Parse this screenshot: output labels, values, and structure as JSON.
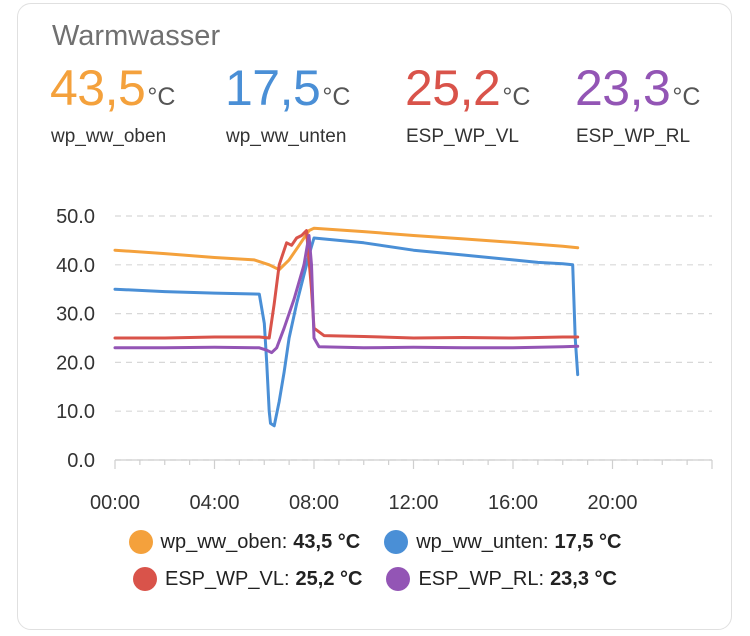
{
  "card": {
    "title": "Warmwasser"
  },
  "stats": [
    {
      "value": "43,5",
      "unit": "°C",
      "label": "wp_ww_oben",
      "color": "#f4a13c"
    },
    {
      "value": "17,5",
      "unit": "°C",
      "label": "wp_ww_unten",
      "color": "#4a8fd6"
    },
    {
      "value": "25,2",
      "unit": "°C",
      "label": "ESP_WP_VL",
      "color": "#d9534a"
    },
    {
      "value": "23,3",
      "unit": "°C",
      "label": "ESP_WP_RL",
      "color": "#9355b5"
    }
  ],
  "legend": [
    {
      "name": "wp_ww_oben:",
      "value": "43,5 °C",
      "color": "#f4a13c"
    },
    {
      "name": "wp_ww_unten:",
      "value": "17,5 °C",
      "color": "#4a8fd6"
    },
    {
      "name": "ESP_WP_VL:",
      "value": "25,2 °C",
      "color": "#d9534a"
    },
    {
      "name": "ESP_WP_RL:",
      "value": "23,3 °C",
      "color": "#9355b5"
    }
  ],
  "chart_data": {
    "type": "line",
    "ylim": [
      0,
      50
    ],
    "xlim": [
      0,
      24
    ],
    "y_ticks": [
      "0.0",
      "10.0",
      "20.0",
      "30.0",
      "40.0",
      "50.0"
    ],
    "x_ticks": [
      "00:00",
      "04:00",
      "08:00",
      "12:00",
      "16:00",
      "20:00"
    ],
    "grid": "horizontal-dashed",
    "series": [
      {
        "name": "wp_ww_oben",
        "color": "#f4a13c",
        "x": [
          0,
          2,
          4,
          5.6,
          6.2,
          6.6,
          7.0,
          7.4,
          7.8,
          8.0,
          10,
          12,
          14,
          16,
          18,
          18.6
        ],
        "y": [
          43.0,
          42.3,
          41.5,
          41.0,
          40.0,
          39.0,
          41.0,
          44.0,
          47.0,
          47.5,
          46.8,
          46.0,
          45.3,
          44.6,
          43.8,
          43.5
        ]
      },
      {
        "name": "wp_ww_unten",
        "color": "#4a8fd6",
        "x": [
          0,
          2,
          4,
          5.8,
          6.0,
          6.1,
          6.2,
          6.25,
          6.4,
          6.6,
          6.8,
          7.0,
          7.3,
          7.6,
          7.8,
          8.0,
          10,
          12,
          14,
          16,
          17,
          18,
          18.4,
          18.5,
          18.6
        ],
        "y": [
          35.0,
          34.5,
          34.2,
          34.0,
          28.0,
          20.0,
          10.0,
          7.5,
          7.0,
          12.0,
          18.0,
          25.0,
          32.0,
          38.0,
          42.0,
          45.5,
          44.5,
          43.0,
          42.0,
          41.0,
          40.5,
          40.2,
          40.0,
          25.0,
          17.5
        ]
      },
      {
        "name": "ESP_WP_VL",
        "color": "#d9534a",
        "x": [
          0,
          2,
          4,
          5.8,
          6.2,
          6.4,
          6.6,
          6.9,
          7.1,
          7.3,
          7.5,
          7.7,
          7.9,
          8.0,
          8.4,
          10,
          12,
          14,
          16,
          18,
          18.6
        ],
        "y": [
          25.0,
          25.0,
          25.2,
          25.2,
          25.0,
          32.0,
          40.0,
          44.5,
          44.0,
          45.5,
          46.0,
          47.0,
          35.0,
          27.0,
          25.5,
          25.3,
          25.0,
          25.1,
          25.0,
          25.2,
          25.2
        ]
      },
      {
        "name": "ESP_WP_RL",
        "color": "#9355b5",
        "x": [
          0,
          2,
          4,
          5.8,
          6.1,
          6.3,
          6.5,
          6.8,
          7.2,
          7.6,
          7.8,
          7.9,
          8.0,
          8.2,
          10,
          12,
          14,
          16,
          18,
          18.6
        ],
        "y": [
          23.0,
          23.0,
          23.1,
          23.0,
          22.5,
          22.0,
          23.0,
          27.0,
          33.0,
          40.0,
          46.0,
          40.0,
          25.0,
          23.2,
          23.0,
          23.1,
          23.0,
          23.0,
          23.2,
          23.3
        ]
      }
    ]
  }
}
